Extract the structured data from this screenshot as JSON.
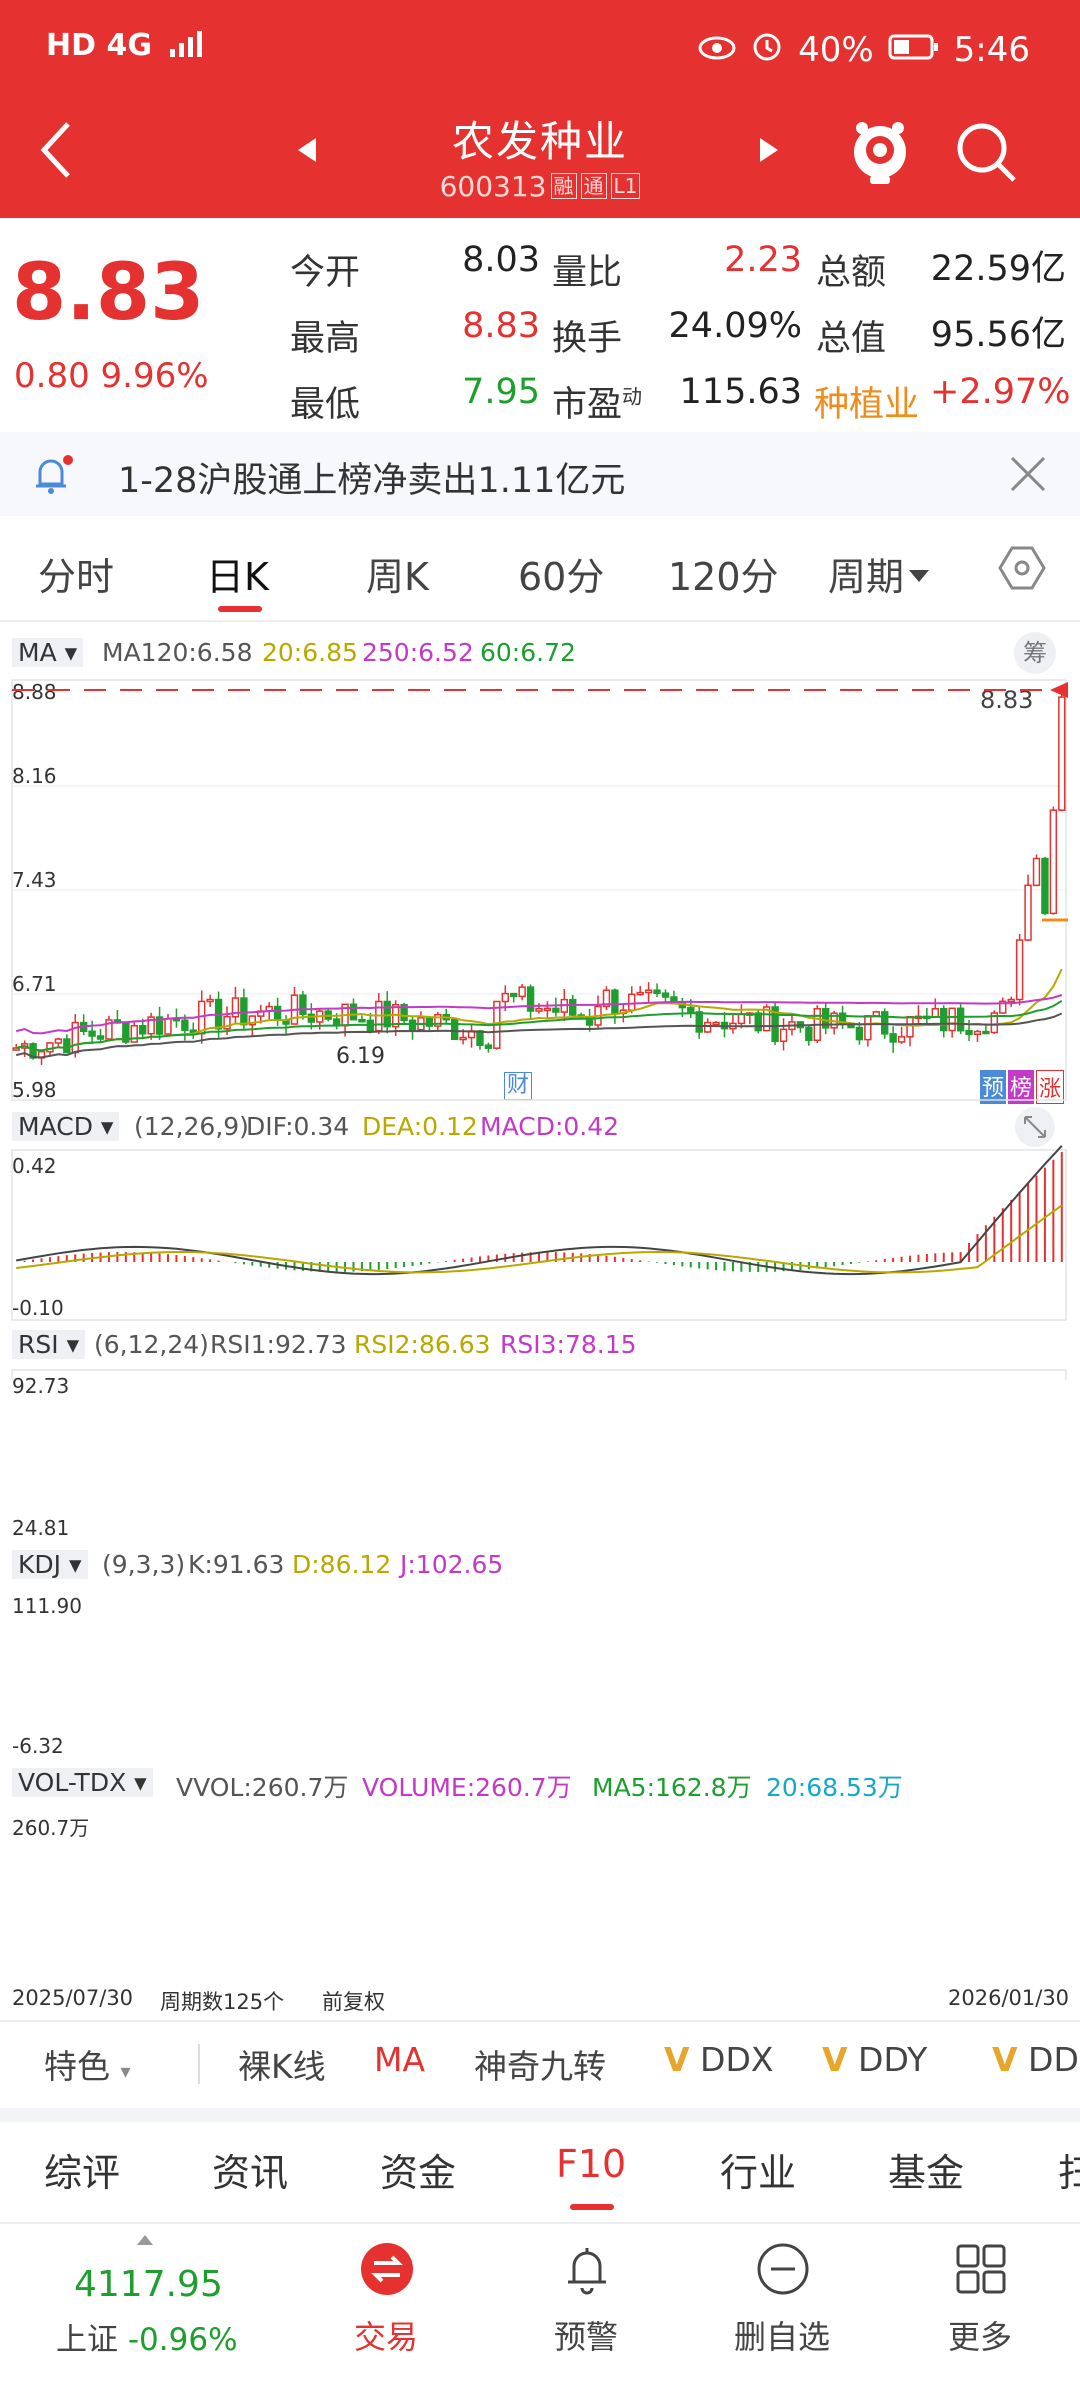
{
  "status": {
    "left": "HD 4G",
    "battery": "40%",
    "time": "5:46"
  },
  "header": {
    "title": "农发种业",
    "code": "600313",
    "tags": [
      "融",
      "通",
      "L1"
    ]
  },
  "quote": {
    "price": "8.83",
    "change": "0.80",
    "pct": "9.96%",
    "rows": [
      {
        "l1": "今开",
        "v1": "8.03",
        "l2": "量比",
        "v2": "2.23",
        "l3": "总额",
        "v3": "22.59亿"
      },
      {
        "l1": "最高",
        "v1": "8.83",
        "l2": "换手",
        "v2": "24.09%",
        "l3": "总值",
        "v3": "95.56亿"
      },
      {
        "l1": "最低",
        "v1": "7.95",
        "l2": "市盈",
        "l2sup": "动",
        "v2": "115.63",
        "l3": "种植业",
        "v3": "+2.97%"
      }
    ]
  },
  "notice": {
    "text": "1-28沪股通上榜净卖出1.11亿元"
  },
  "period_tabs": [
    "分时",
    "日K",
    "周K",
    "60分",
    "120分",
    "周期"
  ],
  "chart": {
    "ma_label": "MA",
    "ma_items": [
      "MA120:6.58",
      "20:6.85",
      "250:6.52",
      "60:6.72"
    ],
    "colors": {
      "ma120": "#555555",
      "ma20": "#b8a800",
      "ma250": "#c23ac6",
      "ma60": "#1e9e2e",
      "up": "#e5312f",
      "down": "#1e9e2e"
    },
    "price_axis": [
      "8.88",
      "8.16",
      "7.43",
      "6.71",
      "5.98"
    ],
    "last_price": "8.83",
    "low_marker": "6.19",
    "cai": "财",
    "badges": [
      "预",
      "榜",
      "涨"
    ],
    "chou": "筹",
    "macd": {
      "label": "MACD",
      "params": "(12,26,9)",
      "dif": "DIF:0.34",
      "dea": "DEA:0.12",
      "macd": "MACD:0.42",
      "top": "0.42",
      "bottom": "-0.10"
    },
    "rsi": {
      "label": "RSI",
      "params": "(6,12,24)",
      "rsi1": "RSI1:92.73",
      "rsi2": "RSI2:86.63",
      "rsi3": "RSI3:78.15",
      "top": "92.73",
      "bottom": "24.81"
    },
    "kdj": {
      "label": "KDJ",
      "params": "(9,3,3)",
      "k": "K:91.63",
      "d": "D:86.12",
      "j": "J:102.65",
      "top": "111.90",
      "bottom": "-6.32"
    },
    "vol": {
      "label": "VOL-TDX",
      "vvol": "VVOL:260.7万",
      "volume": "VOLUME:260.7万",
      "ma5": "MA5:162.8万",
      "ma20": "20:68.53万",
      "top": "260.7万"
    },
    "date_start": "2025/07/30",
    "periods": "周期数125个",
    "adjust": "前复权",
    "date_end": "2026/01/30"
  },
  "features": [
    "特色",
    "裸K线",
    "MA",
    "神奇九转",
    "DDX",
    "DDY",
    "DDZ"
  ],
  "f10_tabs": [
    "综评",
    "资讯",
    "资金",
    "F10",
    "行业",
    "基金",
    "扫"
  ],
  "index": {
    "value": "4117.95",
    "name": "上证",
    "pct": "-0.96%"
  },
  "bottom_nav": [
    "交易",
    "预警",
    "删自选",
    "更多"
  ]
}
